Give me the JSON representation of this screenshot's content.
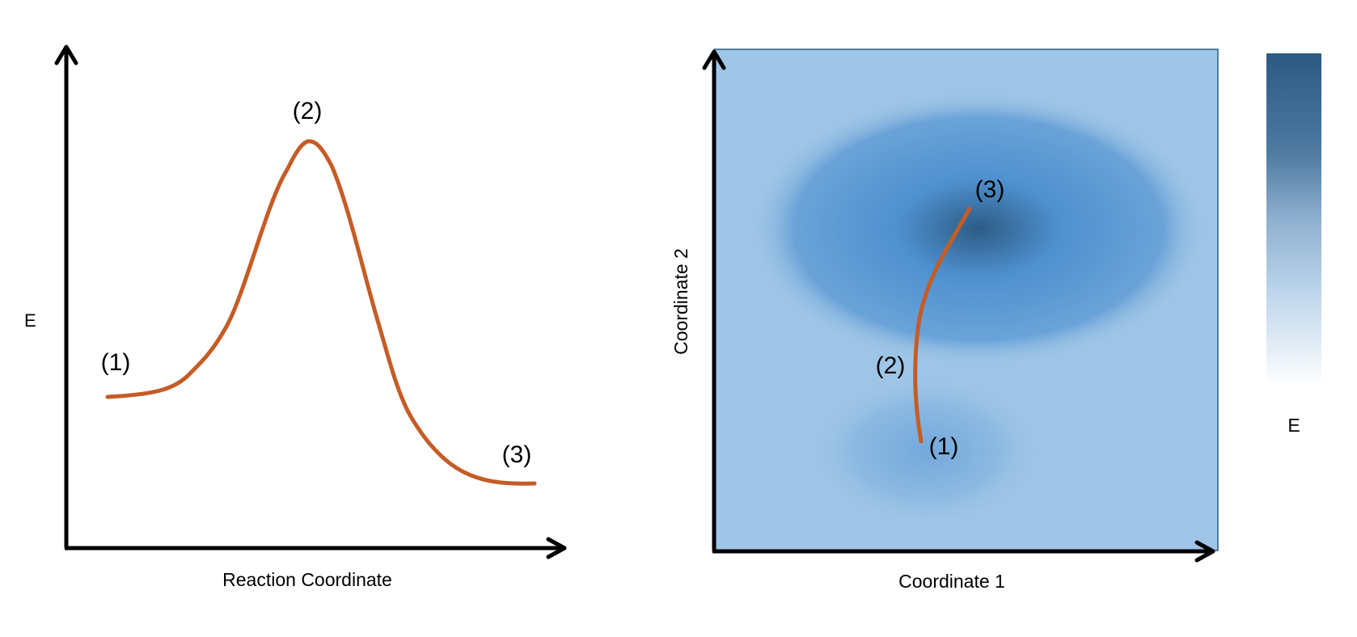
{
  "left_panel": {
    "y_axis_label": "E",
    "x_axis_label": "Reaction Coordinate",
    "point_labels": [
      "(1)",
      "(2)",
      "(3)"
    ]
  },
  "right_panel": {
    "y_axis_label": "Coordinate 2",
    "x_axis_label": "Coordinate 1",
    "point_labels": [
      "(1)",
      "(2)",
      "(3)"
    ]
  },
  "colorbar": {
    "label": "E",
    "color_high": "#2b5a83",
    "color_low": "#ffffff"
  },
  "colors": {
    "curve": "#c55c26",
    "map_background": "#9fc5e6",
    "basin_deep": "#2d5c85",
    "basin_mid": "#4e90cf",
    "basin_shallow": "#74a9db",
    "axis": "#000000"
  }
}
